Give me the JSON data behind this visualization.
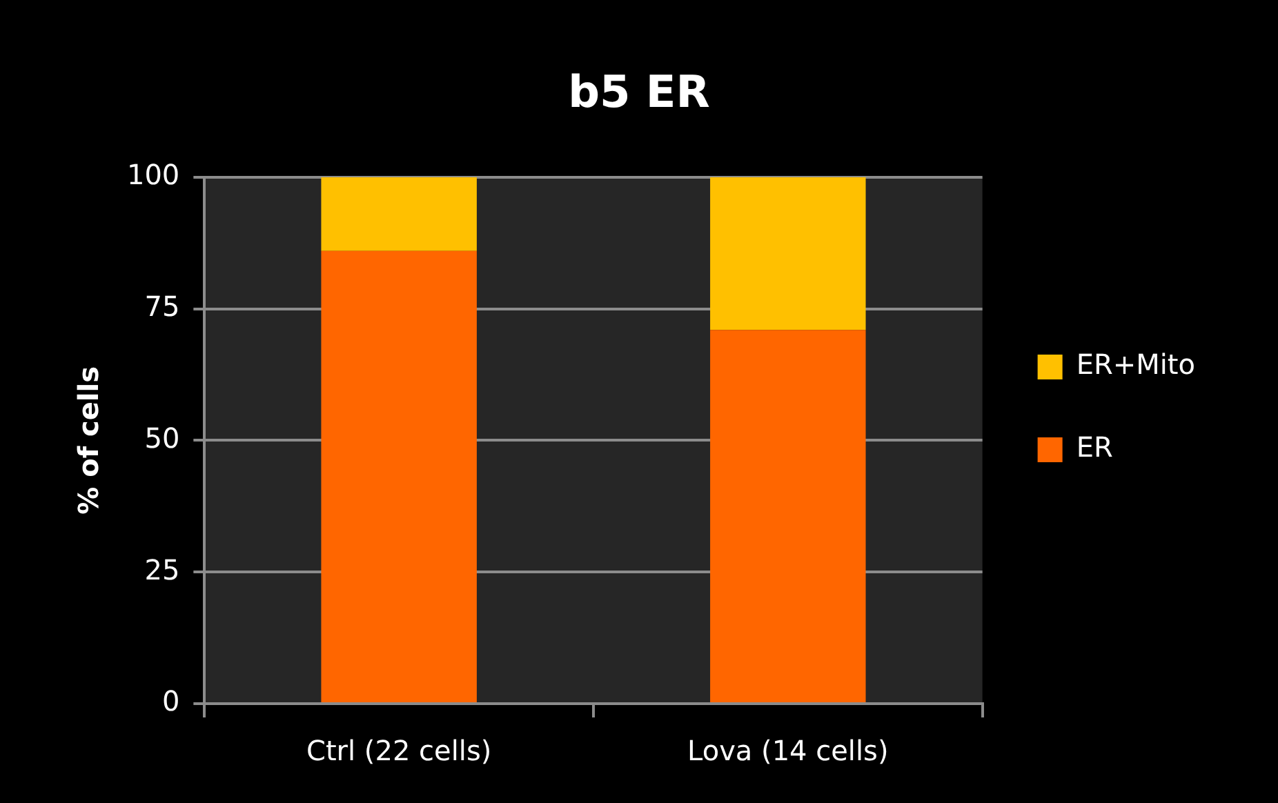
{
  "chart_data": {
    "type": "bar",
    "title": "b5 ER",
    "ylabel": "% of cells",
    "categories": [
      "Ctrl (22 cells)",
      "Lova (14 cells)"
    ],
    "series": [
      {
        "name": "ER",
        "color": "#ff6600",
        "values": [
          86,
          71
        ]
      },
      {
        "name": "ER+Mito",
        "color": "#ffc000",
        "values": [
          14,
          29
        ]
      }
    ],
    "stacked": true,
    "ylim": [
      0,
      100
    ],
    "yticks": [
      0,
      25,
      50,
      75,
      100
    ],
    "grid": "y",
    "legend": "right"
  }
}
